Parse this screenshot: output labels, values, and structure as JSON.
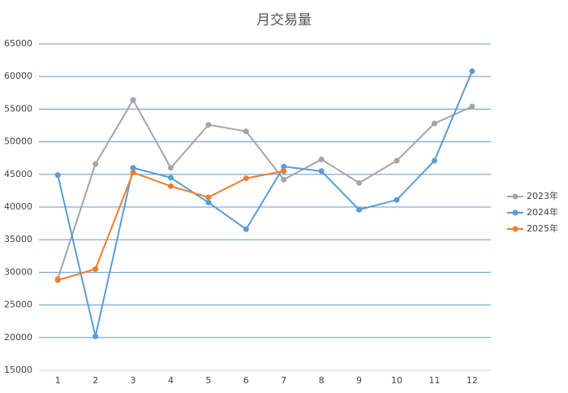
{
  "chart_data": {
    "type": "line",
    "title": "月交易量",
    "categories": [
      "1",
      "2",
      "3",
      "4",
      "5",
      "6",
      "7",
      "8",
      "9",
      "10",
      "11",
      "12"
    ],
    "series": [
      {
        "name": "2023年",
        "color": "#a5a5a5",
        "values": [
          29000,
          46600,
          56400,
          46000,
          52600,
          51600,
          44200,
          47300,
          43700,
          47100,
          52800,
          55400
        ]
      },
      {
        "name": "2024年",
        "color": "#5b9bd5",
        "values": [
          44900,
          20200,
          46000,
          44500,
          40700,
          36600,
          46200,
          45500,
          39600,
          41100,
          47100,
          60800
        ]
      },
      {
        "name": "2025年",
        "color": "#ed7d31",
        "values": [
          28800,
          30500,
          45300,
          43200,
          41500,
          44400,
          45500,
          null,
          null,
          null,
          null,
          null
        ]
      }
    ],
    "ylim": [
      15000,
      65000
    ],
    "yticks": [
      15000,
      20000,
      25000,
      30000,
      35000,
      40000,
      45000,
      50000,
      55000,
      60000,
      65000
    ],
    "grid": true,
    "legend": "right"
  }
}
